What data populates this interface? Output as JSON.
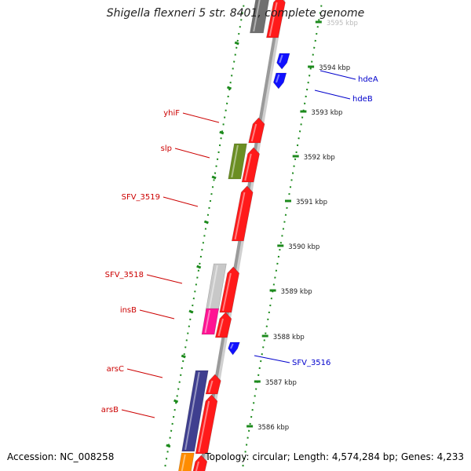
{
  "title": "Shigella flexneri 5 str. 8401, complete genome",
  "accession": "Accession: NC_008258",
  "topology": "Topology: circular; Length: 4,574,284 bp; Genes: 4,233",
  "colors": {
    "forward": "#ff0000",
    "reverse": "#0000ff",
    "dots": "#1c8a1c",
    "backbone": "#9a9a9a",
    "forward_label": "#cc0000",
    "reverse_label": "#0000cc"
  },
  "scale_labels": [
    "3586 kbp",
    "3587 kbp",
    "3588 kbp",
    "3589 kbp",
    "3590 kbp",
    "3591 kbp",
    "3592 kbp",
    "3593 kbp",
    "3594 kbp",
    "3595 kbp"
  ],
  "forward_genes": [
    {
      "label": "yhiF"
    },
    {
      "label": "slp"
    },
    {
      "label": "SFV_3519"
    },
    {
      "label": "SFV_3518"
    },
    {
      "label": "insB"
    },
    {
      "label": "arsC"
    },
    {
      "label": "arsB"
    }
  ],
  "reverse_genes": [
    {
      "label": "hdeA"
    },
    {
      "label": "hdeB"
    },
    {
      "label": "SFV_3516"
    }
  ]
}
